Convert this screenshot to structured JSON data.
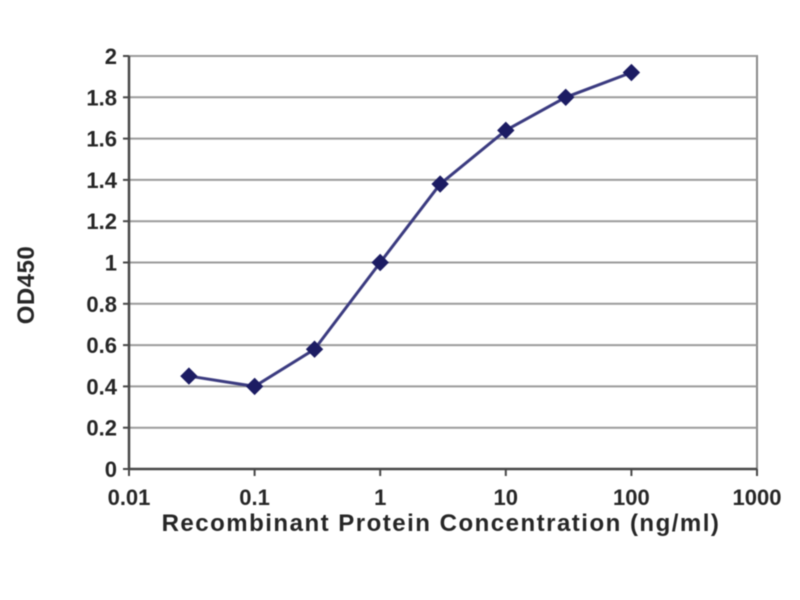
{
  "chart_data": {
    "type": "line",
    "title": "",
    "xlabel": "Recombinant Protein Concentration (ng/ml)",
    "ylabel": "OD450",
    "x_scale": "log",
    "xlim": [
      0.01,
      1000
    ],
    "ylim": [
      0,
      2
    ],
    "x_tick_labels": [
      "0.01",
      "0.1",
      "1",
      "10",
      "100",
      "1000"
    ],
    "x_tick_values": [
      0.01,
      0.1,
      1,
      10,
      100,
      1000
    ],
    "y_tick_labels": [
      "0",
      "0.2",
      "0.4",
      "0.6",
      "0.8",
      "1",
      "1.2",
      "1.4",
      "1.6",
      "1.8",
      "2"
    ],
    "y_tick_values": [
      0,
      0.2,
      0.4,
      0.6,
      0.8,
      1,
      1.2,
      1.4,
      1.6,
      1.8,
      2
    ],
    "grid": "horizontal",
    "legend": "none",
    "series": [
      {
        "marker": "diamond",
        "x": [
          0.03,
          0.1,
          0.3,
          1,
          3,
          10,
          30,
          100
        ],
        "y": [
          0.45,
          0.4,
          0.58,
          1.0,
          1.38,
          1.64,
          1.8,
          1.92
        ]
      }
    ]
  },
  "colors": {
    "background": "#ffffff",
    "plot_background": "#ffffff",
    "grid": "#9b9b9b",
    "frame": "#8a8a8a",
    "axis": "#474747",
    "tick": "#474747",
    "line": "#3b3b80",
    "marker": "#1c1c63",
    "text": "#262626"
  }
}
